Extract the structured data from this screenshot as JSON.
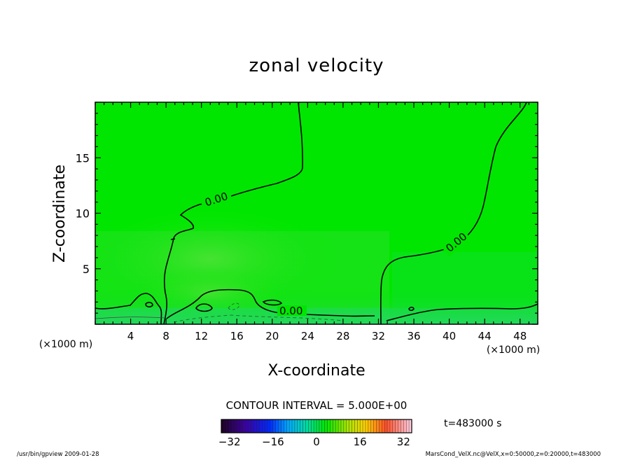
{
  "chart_data": {
    "type": "heatmap",
    "title": "zonal velocity",
    "xlabel": "X-coordinate",
    "ylabel": "Z-coordinate",
    "x_unit": "(×1000 m)",
    "z_unit": "(×1000 m)",
    "xlim": [
      0,
      50
    ],
    "ylim": [
      0,
      20
    ],
    "x_ticks": [
      "4",
      "8",
      "12",
      "16",
      "20",
      "24",
      "28",
      "32",
      "36",
      "40",
      "44",
      "48"
    ],
    "y_ticks": [
      "5",
      "10",
      "15"
    ],
    "x_tick_values": [
      4,
      8,
      12,
      16,
      20,
      24,
      28,
      32,
      36,
      40,
      44,
      48
    ],
    "y_tick_values": [
      5,
      10,
      15
    ],
    "contour_levels": [
      0
    ],
    "contour_labels": [
      "0.00",
      "0.00",
      "0.00"
    ],
    "contour_interval_text": "CONTOUR INTERVAL = 5.000E+00",
    "colorbar": {
      "min": -35,
      "max": 35,
      "tick_labels": [
        "−32",
        "−16",
        "0",
        "16",
        "32"
      ],
      "tick_values": [
        -32,
        -16,
        0,
        16,
        32
      ]
    },
    "time_label": "t=483000 s",
    "footer_left": "/usr/bin/gpview   2009-01-28",
    "footer_right": "MarsCond_VelX.nc@VelX,x=0:50000,z=0:20000,t=483000",
    "colors": {
      "field_main": "#00e600",
      "field_light": "#3ce83c",
      "field_low": "#20dc50",
      "contour": "#000000"
    }
  }
}
